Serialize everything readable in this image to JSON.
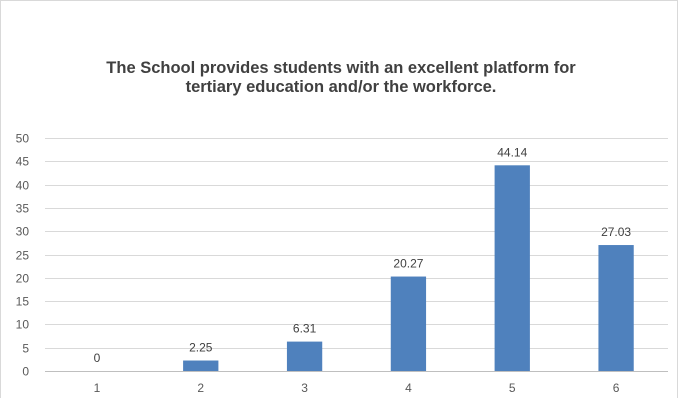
{
  "chart_data": {
    "type": "bar",
    "title_lines": [
      "The School provides students with an excellent platform for",
      "tertiary education and/or the workforce."
    ],
    "categories": [
      "1",
      "2",
      "3",
      "4",
      "5",
      "6"
    ],
    "values": [
      0,
      2.25,
      6.31,
      20.27,
      44.14,
      27.03
    ],
    "data_labels": [
      "0",
      "2.25",
      "6.31",
      "20.27",
      "44.14",
      "27.03"
    ],
    "xlabel": "",
    "ylabel": "",
    "ylim": [
      0,
      50
    ],
    "yticks": [
      0,
      5,
      10,
      15,
      20,
      25,
      30,
      35,
      40,
      45,
      50
    ],
    "grid": true,
    "legend": "none",
    "bar_color": "#4f81bd",
    "grid_color": "#d9d9d9",
    "axis_color": "#bfbfbf"
  }
}
